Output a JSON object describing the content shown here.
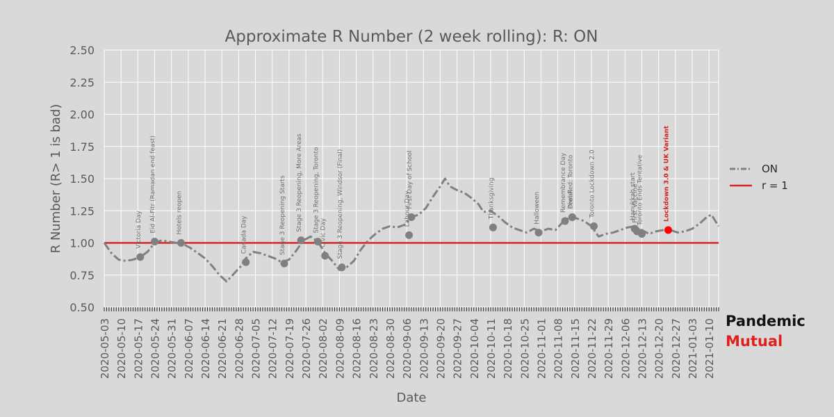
{
  "chart_data": {
    "type": "line",
    "title": "Approximate R Number (2 week rolling): R: ON",
    "xlabel": "Date",
    "ylabel": "R Number (R> 1 is bad)",
    "ylim": [
      0.5,
      2.5
    ],
    "yticks": [
      "0.50",
      "0.75",
      "1.00",
      "1.25",
      "1.50",
      "1.75",
      "2.00",
      "2.25",
      "2.50"
    ],
    "x_start": "2020-05-03",
    "x_end": "2021-01-14",
    "xtick_labels": [
      "2020-05-03",
      "2020-05-10",
      "2020-05-17",
      "2020-05-24",
      "2020-05-31",
      "2020-06-07",
      "2020-06-14",
      "2020-06-21",
      "2020-06-28",
      "2020-07-05",
      "2020-07-12",
      "2020-07-19",
      "2020-07-26",
      "2020-08-02",
      "2020-08-09",
      "2020-08-16",
      "2020-08-23",
      "2020-08-30",
      "2020-09-06",
      "2020-09-13",
      "2020-09-20",
      "2020-09-27",
      "2020-10-04",
      "2020-10-11",
      "2020-10-18",
      "2020-10-25",
      "2020-11-01",
      "2020-11-08",
      "2020-11-15",
      "2020-11-22",
      "2020-11-29",
      "2020-12-06",
      "2020-12-13",
      "2020-12-20",
      "2020-12-27",
      "2021-01-03",
      "2021-01-10"
    ],
    "grid": true,
    "legend_position": "right",
    "series": [
      {
        "name": "ON",
        "color": "#808080",
        "points": [
          [
            "2020-05-03",
            1.0
          ],
          [
            "2020-05-06",
            0.92
          ],
          [
            "2020-05-09",
            0.87
          ],
          [
            "2020-05-12",
            0.86
          ],
          [
            "2020-05-15",
            0.87
          ],
          [
            "2020-05-18",
            0.89
          ],
          [
            "2020-05-21",
            0.93
          ],
          [
            "2020-05-24",
            1.0
          ],
          [
            "2020-05-27",
            1.02
          ],
          [
            "2020-05-30",
            1.01
          ],
          [
            "2020-06-02",
            1.0
          ],
          [
            "2020-06-05",
            0.99
          ],
          [
            "2020-06-08",
            0.96
          ],
          [
            "2020-06-11",
            0.92
          ],
          [
            "2020-06-14",
            0.88
          ],
          [
            "2020-06-17",
            0.82
          ],
          [
            "2020-06-20",
            0.75
          ],
          [
            "2020-06-23",
            0.7
          ],
          [
            "2020-06-26",
            0.76
          ],
          [
            "2020-06-29",
            0.82
          ],
          [
            "2020-07-01",
            0.88
          ],
          [
            "2020-07-04",
            0.93
          ],
          [
            "2020-07-07",
            0.92
          ],
          [
            "2020-07-10",
            0.9
          ],
          [
            "2020-07-13",
            0.88
          ],
          [
            "2020-07-16",
            0.85
          ],
          [
            "2020-07-19",
            0.87
          ],
          [
            "2020-07-22",
            0.94
          ],
          [
            "2020-07-25",
            1.02
          ],
          [
            "2020-07-28",
            1.05
          ],
          [
            "2020-07-31",
            1.01
          ],
          [
            "2020-08-03",
            0.92
          ],
          [
            "2020-08-06",
            0.86
          ],
          [
            "2020-08-09",
            0.79
          ],
          [
            "2020-08-12",
            0.81
          ],
          [
            "2020-08-15",
            0.86
          ],
          [
            "2020-08-18",
            0.95
          ],
          [
            "2020-08-21",
            1.02
          ],
          [
            "2020-08-24",
            1.07
          ],
          [
            "2020-08-27",
            1.11
          ],
          [
            "2020-08-30",
            1.13
          ],
          [
            "2020-09-02",
            1.12
          ],
          [
            "2020-09-05",
            1.14
          ],
          [
            "2020-09-08",
            1.2
          ],
          [
            "2020-09-11",
            1.22
          ],
          [
            "2020-09-14",
            1.27
          ],
          [
            "2020-09-17",
            1.36
          ],
          [
            "2020-09-20",
            1.44
          ],
          [
            "2020-09-22",
            1.5
          ],
          [
            "2020-09-24",
            1.44
          ],
          [
            "2020-09-27",
            1.41
          ],
          [
            "2020-09-30",
            1.39
          ],
          [
            "2020-10-03",
            1.35
          ],
          [
            "2020-10-06",
            1.3
          ],
          [
            "2020-10-08",
            1.24
          ],
          [
            "2020-10-11",
            1.25
          ],
          [
            "2020-10-14",
            1.21
          ],
          [
            "2020-10-17",
            1.16
          ],
          [
            "2020-10-20",
            1.12
          ],
          [
            "2020-10-23",
            1.1
          ],
          [
            "2020-10-26",
            1.08
          ],
          [
            "2020-10-29",
            1.11
          ],
          [
            "2020-11-01",
            1.09
          ],
          [
            "2020-11-04",
            1.11
          ],
          [
            "2020-11-07",
            1.1
          ],
          [
            "2020-11-10",
            1.16
          ],
          [
            "2020-11-13",
            1.2
          ],
          [
            "2020-11-16",
            1.19
          ],
          [
            "2020-11-19",
            1.17
          ],
          [
            "2020-11-22",
            1.13
          ],
          [
            "2020-11-25",
            1.05
          ],
          [
            "2020-11-28",
            1.07
          ],
          [
            "2020-12-01",
            1.08
          ],
          [
            "2020-12-04",
            1.1
          ],
          [
            "2020-12-07",
            1.12
          ],
          [
            "2020-12-10",
            1.13
          ],
          [
            "2020-12-13",
            1.1
          ],
          [
            "2020-12-16",
            1.07
          ],
          [
            "2020-12-19",
            1.09
          ],
          [
            "2020-12-22",
            1.1
          ],
          [
            "2020-12-25",
            1.1
          ],
          [
            "2020-12-28",
            1.08
          ],
          [
            "2020-12-31",
            1.09
          ],
          [
            "2021-01-03",
            1.11
          ],
          [
            "2021-01-06",
            1.15
          ],
          [
            "2021-01-09",
            1.2
          ],
          [
            "2021-01-11",
            1.22
          ],
          [
            "2021-01-14",
            1.13
          ]
        ]
      },
      {
        "name": "r = 1",
        "color": "#d62728",
        "constant": 1.0
      }
    ],
    "annotations": [
      {
        "date": "2020-05-18",
        "value": 0.89,
        "label": "Victoria Day"
      },
      {
        "date": "2020-05-24",
        "value": 1.01,
        "label": "Eid Al-Fitr (Ramadan end feast)"
      },
      {
        "date": "2020-06-04",
        "value": 1.0,
        "label": "Hotels reopen"
      },
      {
        "date": "2020-07-01",
        "value": 0.85,
        "label": "Canada Day"
      },
      {
        "date": "2020-07-17",
        "value": 0.84,
        "label": "Stage 3 Reopening Starts"
      },
      {
        "date": "2020-07-24",
        "value": 1.02,
        "label": "Stage 3 Reopening, More Areas"
      },
      {
        "date": "2020-07-31",
        "value": 1.01,
        "label": "Stage 3 Reopening, Toronto"
      },
      {
        "date": "2020-08-03",
        "value": 0.9,
        "label": "Civic Day"
      },
      {
        "date": "2020-08-10",
        "value": 0.81,
        "label": "Stage 3 Reopening, Windsor (Final)"
      },
      {
        "date": "2020-09-07",
        "value": 1.06,
        "label": "Labour Day"
      },
      {
        "date": "2020-09-08",
        "value": 1.2,
        "label": "First Day of School"
      },
      {
        "date": "2020-10-12",
        "value": 1.12,
        "label": "Thanksgiving"
      },
      {
        "date": "2020-10-31",
        "value": 1.08,
        "label": "Halloween"
      },
      {
        "date": "2020-11-11",
        "value": 1.17,
        "label": "Remembrance Day"
      },
      {
        "date": "2020-11-14",
        "value": 1.2,
        "label": "Diwali"
      },
      {
        "date": "2020-11-14",
        "value": 1.2,
        "label": "Peel Red: Toronto"
      },
      {
        "date": "2020-11-23",
        "value": 1.13,
        "label": "Toronto Lockdown 2.0"
      },
      {
        "date": "2020-12-10",
        "value": 1.11,
        "label": "Hanukkah start"
      },
      {
        "date": "2020-12-11",
        "value": 1.09,
        "label": "First Vaccine"
      },
      {
        "date": "2020-12-13",
        "value": 1.07,
        "label": "Toronto Ends Tentative"
      },
      {
        "date": "2020-12-24",
        "value": 1.1,
        "label": "Lockdown 3.0 & UK Variant",
        "highlight": true
      }
    ]
  },
  "legend": {
    "items": [
      {
        "label": "ON",
        "color": "#808080",
        "style": "dashdot"
      },
      {
        "label": "r = 1",
        "color": "#d62728",
        "style": "solid"
      }
    ]
  },
  "brand": {
    "line1": "Pandemic",
    "line2": "Mutual"
  }
}
